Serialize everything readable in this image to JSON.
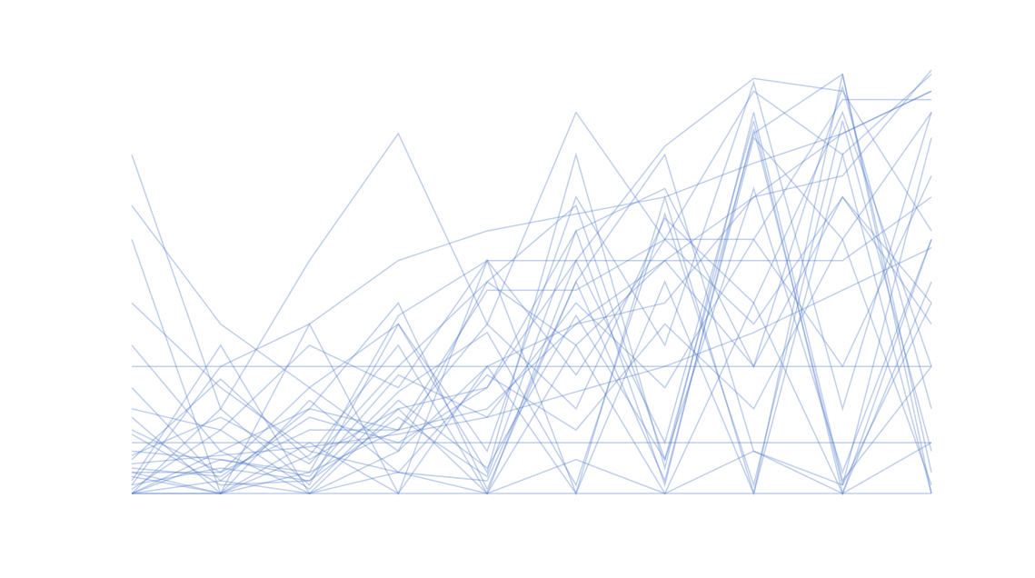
{
  "chart_data": {
    "type": "line",
    "color": "#4a76c8",
    "opacity": 0.35,
    "categories": [
      null,
      null,
      null,
      null,
      null,
      null,
      null,
      null,
      null,
      null
    ],
    "ylim": [
      0,
      100
    ],
    "series": [
      {
        "values": [
          0,
          10,
          0,
          20,
          0,
          35,
          0,
          45,
          0,
          60
        ]
      },
      {
        "values": [
          5,
          0,
          12,
          0,
          30,
          0,
          50,
          0,
          80,
          0
        ]
      },
      {
        "values": [
          0,
          0,
          5,
          15,
          20,
          40,
          55,
          70,
          85,
          95
        ]
      },
      {
        "values": [
          30,
          30,
          30,
          30,
          30,
          30,
          30,
          30,
          30,
          30
        ]
      },
      {
        "values": [
          8,
          27,
          8,
          20,
          25,
          55,
          82,
          98,
          95,
          62
        ]
      },
      {
        "values": [
          2,
          6,
          3,
          18,
          4,
          62,
          2,
          86,
          2,
          84
        ]
      },
      {
        "values": [
          60,
          0,
          40,
          0,
          55,
          0,
          70,
          0,
          99,
          0
        ]
      },
      {
        "values": [
          15,
          5,
          25,
          40,
          10,
          70,
          35,
          97,
          20,
          90
        ]
      },
      {
        "values": [
          0,
          3,
          0,
          5,
          0,
          8,
          0,
          10,
          0,
          12
        ]
      },
      {
        "values": [
          12,
          12,
          12,
          12,
          12,
          12,
          12,
          12,
          12,
          12
        ]
      },
      {
        "values": [
          4,
          0,
          9,
          35,
          0,
          55,
          12,
          88,
          0,
          50
        ]
      },
      {
        "values": [
          20,
          15,
          35,
          25,
          55,
          28,
          60,
          40,
          70,
          45
        ]
      },
      {
        "values": [
          68,
          40,
          25,
          10,
          30,
          40,
          45,
          70,
          75,
          100
        ]
      },
      {
        "values": [
          0,
          20,
          2,
          40,
          5,
          80,
          6,
          90,
          3,
          30
        ]
      },
      {
        "values": [
          6,
          4,
          18,
          12,
          25,
          62,
          72,
          30,
          96,
          20
        ]
      },
      {
        "values": [
          3,
          35,
          0,
          10,
          50,
          68,
          8,
          85,
          99,
          5
        ]
      },
      {
        "values": [
          18,
          0,
          22,
          5,
          28,
          15,
          40,
          20,
          60,
          90
        ]
      },
      {
        "values": [
          10,
          8,
          5,
          42,
          55,
          55,
          55,
          55,
          55,
          70
        ]
      },
      {
        "values": [
          45,
          25,
          10,
          5,
          3,
          50,
          80,
          10,
          2,
          45
        ]
      },
      {
        "values": [
          0,
          0,
          0,
          0,
          0,
          0,
          0,
          0,
          0,
          0
        ]
      },
      {
        "values": [
          1,
          15,
          1,
          22,
          6,
          42,
          8,
          72,
          5,
          60
        ]
      },
      {
        "values": [
          25,
          3,
          20,
          45,
          1,
          50,
          3,
          84,
          60,
          2
        ]
      },
      {
        "values": [
          7,
          9,
          11,
          14,
          18,
          24,
          30,
          38,
          48,
          58
        ]
      },
      {
        "values": [
          2,
          30,
          40,
          55,
          62,
          66,
          70,
          78,
          85,
          95
        ]
      },
      {
        "values": [
          80,
          20,
          55,
          85,
          40,
          90,
          60,
          95,
          80,
          99
        ]
      },
      {
        "values": [
          9,
          18,
          7,
          30,
          50,
          35,
          55,
          30,
          70,
          40
        ]
      },
      {
        "values": [
          14,
          2,
          3,
          24,
          38,
          2,
          66,
          2,
          88,
          10
        ]
      },
      {
        "values": [
          0,
          8,
          4,
          28,
          18,
          45,
          25,
          60,
          30,
          75
        ]
      },
      {
        "values": [
          35,
          10,
          20,
          15,
          40,
          20,
          65,
          45,
          90,
          30
        ]
      },
      {
        "values": [
          5,
          5,
          15,
          15,
          48,
          48,
          60,
          60,
          93,
          93
        ]
      }
    ]
  }
}
